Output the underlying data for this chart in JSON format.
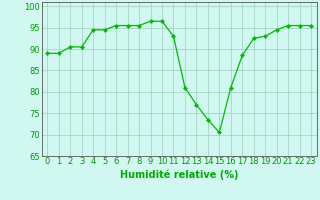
{
  "x": [
    0,
    1,
    2,
    3,
    4,
    5,
    6,
    7,
    8,
    9,
    10,
    11,
    12,
    13,
    14,
    15,
    16,
    17,
    18,
    19,
    20,
    21,
    22,
    23
  ],
  "y": [
    89,
    89,
    90.5,
    90.5,
    94.5,
    94.5,
    95.5,
    95.5,
    95.5,
    96.5,
    96.5,
    93,
    81,
    77,
    73.5,
    70.5,
    81,
    88.5,
    92.5,
    93,
    94.5,
    95.5,
    95.5,
    95.5
  ],
  "line_color": "#00bb00",
  "marker_color": "#00bb00",
  "bg_color": "#d0f8f0",
  "grid_color": "#a0ccc0",
  "xlabel": "Humidité relative (%)",
  "xlabel_color": "#00aa00",
  "ylim": [
    65,
    101
  ],
  "xlim": [
    -0.5,
    23.5
  ],
  "yticks": [
    65,
    70,
    75,
    80,
    85,
    90,
    95,
    100
  ],
  "xtick_labels": [
    "0",
    "1",
    "2",
    "3",
    "4",
    "5",
    "6",
    "7",
    "8",
    "9",
    "10",
    "11",
    "12",
    "13",
    "14",
    "15",
    "16",
    "17",
    "18",
    "19",
    "20",
    "21",
    "22",
    "23"
  ],
  "xlabel_fontsize": 7.0,
  "tick_fontsize": 6.0
}
